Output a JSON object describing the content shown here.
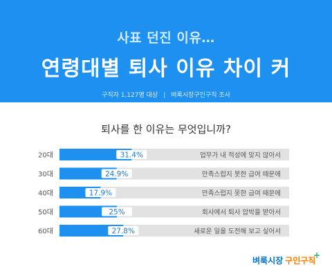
{
  "header": {
    "title_top": "사표 던진 이유…",
    "title_main": "연령대별 퇴사 이유 차이 커",
    "source_left": "구직자 1,127명 대상",
    "source_sep": "|",
    "source_right": "벼룩시장구인구직 조사"
  },
  "chart_data": {
    "type": "bar",
    "title": "퇴사를 한 이유는 무엇입니까?",
    "categories": [
      "20대",
      "30대",
      "40대",
      "50대",
      "60대"
    ],
    "values": [
      31.4,
      24.9,
      17.9,
      25,
      27.8
    ],
    "value_labels": [
      "31.4%",
      "24.9%",
      "17.9%",
      "25%",
      "27.8%"
    ],
    "reasons": [
      "업무가 내 적성에 맞지 않아서",
      "만족스럽지 못한 급여 때문에",
      "만족스럽지 못한 급여 때문에",
      "회사에서 퇴사 압박을 받아서",
      "새로운 일을 도전해 보고 싶어서"
    ],
    "xlim": [
      0,
      100
    ],
    "grid": false,
    "colors": {
      "bar": "#1e90f0",
      "track": "#e2e2e2",
      "label_text": "#1e78d2"
    }
  },
  "logo": {
    "part1": "벼룩시장",
    "part2": "구인구직",
    "mark": "+"
  }
}
